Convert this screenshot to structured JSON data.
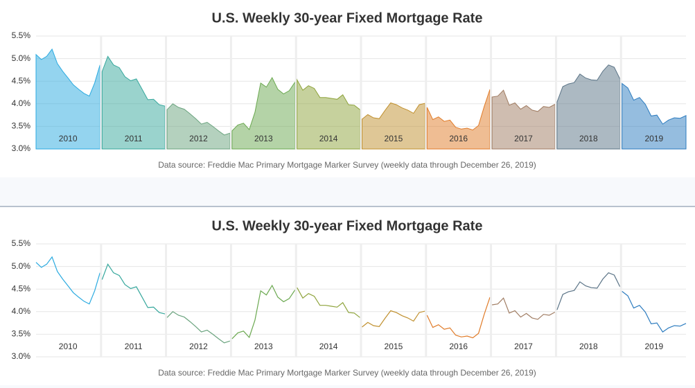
{
  "chart_data": [
    {
      "type": "area",
      "title": "U.S. Weekly 30-year Fixed Mortgage Rate",
      "source": "Data source: Freddie Mac Primary Mortgage Marker Survey (weekly data through December 26, 2019)",
      "ylim": [
        3.0,
        5.5
      ],
      "yticks": [
        {
          "value": 3.0,
          "label": "3.0%"
        },
        {
          "value": 3.5,
          "label": "3.5%"
        },
        {
          "value": 4.0,
          "label": "4.0%"
        },
        {
          "value": 4.5,
          "label": "4.5%"
        },
        {
          "value": 5.0,
          "label": "5.0%"
        },
        {
          "value": 5.5,
          "label": "5.5%"
        }
      ],
      "grid": true,
      "series": [
        {
          "name": "2010",
          "color": "#2aaae0",
          "values": [
            5.09,
            4.98,
            5.05,
            5.21,
            4.89,
            4.72,
            4.57,
            4.42,
            4.32,
            4.23,
            4.17,
            4.46,
            4.86
          ]
        },
        {
          "name": "2011",
          "color": "#35a79c",
          "values": [
            4.71,
            5.05,
            4.86,
            4.8,
            4.6,
            4.51,
            4.55,
            4.32,
            4.09,
            4.1,
            3.98,
            3.95
          ]
        },
        {
          "name": "2012",
          "color": "#6aa37e",
          "values": [
            3.87,
            4.0,
            3.92,
            3.88,
            3.78,
            3.67,
            3.55,
            3.59,
            3.5,
            3.4,
            3.31,
            3.35
          ]
        },
        {
          "name": "2013",
          "color": "#6aa84f",
          "values": [
            3.4,
            3.53,
            3.57,
            3.43,
            3.81,
            4.46,
            4.37,
            4.58,
            4.32,
            4.22,
            4.29,
            4.48
          ]
        },
        {
          "name": "2014",
          "color": "#8ea33b",
          "values": [
            4.53,
            4.3,
            4.4,
            4.34,
            4.14,
            4.14,
            4.12,
            4.1,
            4.2,
            3.98,
            3.97,
            3.87
          ]
        },
        {
          "name": "2015",
          "color": "#c0902e",
          "values": [
            3.66,
            3.76,
            3.69,
            3.67,
            3.85,
            4.02,
            3.98,
            3.91,
            3.86,
            3.79,
            3.98,
            4.01
          ]
        },
        {
          "name": "2016",
          "color": "#e07b28",
          "values": [
            3.92,
            3.65,
            3.71,
            3.61,
            3.64,
            3.48,
            3.44,
            3.46,
            3.42,
            3.52,
            3.94,
            4.32
          ]
        },
        {
          "name": "2017",
          "color": "#a07c62",
          "values": [
            4.15,
            4.17,
            4.3,
            3.97,
            4.02,
            3.88,
            3.96,
            3.86,
            3.83,
            3.94,
            3.92,
            3.99
          ]
        },
        {
          "name": "2018",
          "color": "#5a7386",
          "values": [
            4.04,
            4.38,
            4.44,
            4.47,
            4.66,
            4.57,
            4.53,
            4.52,
            4.72,
            4.86,
            4.81,
            4.55
          ]
        },
        {
          "name": "2019",
          "color": "#2b7bbf",
          "values": [
            4.45,
            4.35,
            4.08,
            4.14,
            3.99,
            3.73,
            3.75,
            3.55,
            3.64,
            3.69,
            3.68,
            3.74
          ]
        }
      ]
    },
    {
      "type": "line",
      "title": "U.S. Weekly 30-year Fixed Mortgage Rate",
      "source": "Data source: Freddie Mac Primary Mortgage Marker Survey (weekly data through December 26, 2019)",
      "ylim": [
        3.0,
        5.5
      ],
      "yticks": [
        {
          "value": 3.0,
          "label": "3.0%"
        },
        {
          "value": 3.5,
          "label": "3.5%"
        },
        {
          "value": 4.0,
          "label": "4.0%"
        },
        {
          "value": 4.5,
          "label": "4.5%"
        },
        {
          "value": 5.0,
          "label": "5.0%"
        },
        {
          "value": 5.5,
          "label": "5.5%"
        }
      ],
      "grid": true,
      "series": [
        {
          "name": "2010",
          "color": "#2aaae0",
          "values": [
            5.09,
            4.98,
            5.05,
            5.21,
            4.89,
            4.72,
            4.57,
            4.42,
            4.32,
            4.23,
            4.17,
            4.46,
            4.86
          ]
        },
        {
          "name": "2011",
          "color": "#35a79c",
          "values": [
            4.71,
            5.05,
            4.86,
            4.8,
            4.6,
            4.51,
            4.55,
            4.32,
            4.09,
            4.1,
            3.98,
            3.95
          ]
        },
        {
          "name": "2012",
          "color": "#6aa37e",
          "values": [
            3.87,
            4.0,
            3.92,
            3.88,
            3.78,
            3.67,
            3.55,
            3.59,
            3.5,
            3.4,
            3.31,
            3.35
          ]
        },
        {
          "name": "2013",
          "color": "#6aa84f",
          "values": [
            3.4,
            3.53,
            3.57,
            3.43,
            3.81,
            4.46,
            4.37,
            4.58,
            4.32,
            4.22,
            4.29,
            4.48
          ]
        },
        {
          "name": "2014",
          "color": "#8ea33b",
          "values": [
            4.53,
            4.3,
            4.4,
            4.34,
            4.14,
            4.14,
            4.12,
            4.1,
            4.2,
            3.98,
            3.97,
            3.87
          ]
        },
        {
          "name": "2015",
          "color": "#c0902e",
          "values": [
            3.66,
            3.76,
            3.69,
            3.67,
            3.85,
            4.02,
            3.98,
            3.91,
            3.86,
            3.79,
            3.98,
            4.01
          ]
        },
        {
          "name": "2016",
          "color": "#e07b28",
          "values": [
            3.92,
            3.65,
            3.71,
            3.61,
            3.64,
            3.48,
            3.44,
            3.46,
            3.42,
            3.52,
            3.94,
            4.32
          ]
        },
        {
          "name": "2017",
          "color": "#a07c62",
          "values": [
            4.15,
            4.17,
            4.3,
            3.97,
            4.02,
            3.88,
            3.96,
            3.86,
            3.83,
            3.94,
            3.92,
            3.99
          ]
        },
        {
          "name": "2018",
          "color": "#5a7386",
          "values": [
            4.04,
            4.38,
            4.44,
            4.47,
            4.66,
            4.57,
            4.53,
            4.52,
            4.72,
            4.86,
            4.81,
            4.55
          ]
        },
        {
          "name": "2019",
          "color": "#2b7bbf",
          "values": [
            4.45,
            4.35,
            4.08,
            4.14,
            3.99,
            3.73,
            3.75,
            3.55,
            3.64,
            3.69,
            3.68,
            3.74
          ]
        }
      ]
    }
  ]
}
